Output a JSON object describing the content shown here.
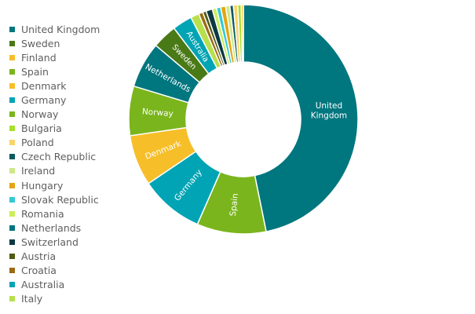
{
  "chart_data": {
    "type": "pie",
    "title": "",
    "legend_position": "left",
    "slices": [
      {
        "name": "United Kingdom",
        "label": "United Kingdom",
        "value": 47.0,
        "color": "#00767f"
      },
      {
        "name": "Spain",
        "label": "Spain",
        "value": 9.8,
        "color": "#7ab51d"
      },
      {
        "name": "Germany",
        "label": "Germany",
        "value": 9.0,
        "color": "#00a4b4"
      },
      {
        "name": "Denmark",
        "label": "Denmark",
        "value": 7.2,
        "color": "#f6be28"
      },
      {
        "name": "Norway",
        "label": "Norway",
        "value": 7.0,
        "color": "#7ab51d"
      },
      {
        "name": "Netherlands",
        "label": "Netherlands",
        "value": 6.5,
        "color": "#00767f"
      },
      {
        "name": "Sweden",
        "label": "Sweden",
        "value": 3.5,
        "color": "#4a7a16"
      },
      {
        "name": "Australia",
        "label": "Australia",
        "value": 2.8,
        "color": "#00a4b4"
      },
      {
        "name": "Italy",
        "label": "",
        "value": 1.2,
        "color": "#b7e04c"
      },
      {
        "name": "Croatia",
        "label": "",
        "value": 0.6,
        "color": "#9a6a14"
      },
      {
        "name": "Austria",
        "label": "",
        "value": 0.5,
        "color": "#4f5a11"
      },
      {
        "name": "Switzerland",
        "label": "",
        "value": 0.9,
        "color": "#0c3844"
      },
      {
        "name": "Romania",
        "label": "",
        "value": 0.6,
        "color": "#c9ef5a"
      },
      {
        "name": "Slovak Republic",
        "label": "",
        "value": 0.6,
        "color": "#33c9d6"
      },
      {
        "name": "Hungary",
        "label": "",
        "value": 0.7,
        "color": "#e4a512"
      },
      {
        "name": "Ireland",
        "label": "",
        "value": 0.6,
        "color": "#cde88a"
      },
      {
        "name": "Czech Republic",
        "label": "",
        "value": 0.5,
        "color": "#0b5a60"
      },
      {
        "name": "Poland",
        "label": "",
        "value": 0.6,
        "color": "#fad36a"
      },
      {
        "name": "Bulgaria",
        "label": "",
        "value": 0.5,
        "color": "#a6e02a"
      },
      {
        "name": "Finland",
        "label": "",
        "value": 0.3,
        "color": "#f6be28"
      }
    ]
  },
  "legend": [
    {
      "label": "United Kingdom",
      "color": "#00767f"
    },
    {
      "label": "Sweden",
      "color": "#4a7a16"
    },
    {
      "label": "Finland",
      "color": "#f6be28"
    },
    {
      "label": "Spain",
      "color": "#7ab51d"
    },
    {
      "label": "Denmark",
      "color": "#f6be28"
    },
    {
      "label": "Germany",
      "color": "#00a4b4"
    },
    {
      "label": "Norway",
      "color": "#7ab51d"
    },
    {
      "label": "Bulgaria",
      "color": "#a6e02a"
    },
    {
      "label": "Poland",
      "color": "#fad36a"
    },
    {
      "label": "Czech Republic",
      "color": "#0b5a60"
    },
    {
      "label": "Ireland",
      "color": "#cde88a"
    },
    {
      "label": "Hungary",
      "color": "#e4a512"
    },
    {
      "label": "Slovak Republic",
      "color": "#33c9d6"
    },
    {
      "label": "Romania",
      "color": "#c9ef5a"
    },
    {
      "label": "Netherlands",
      "color": "#00767f"
    },
    {
      "label": "Switzerland",
      "color": "#0c3844"
    },
    {
      "label": "Austria",
      "color": "#4f5a11"
    },
    {
      "label": "Croatia",
      "color": "#9a6a14"
    },
    {
      "label": "Australia",
      "color": "#00a4b4"
    },
    {
      "label": "Italy",
      "color": "#b7e04c"
    }
  ]
}
